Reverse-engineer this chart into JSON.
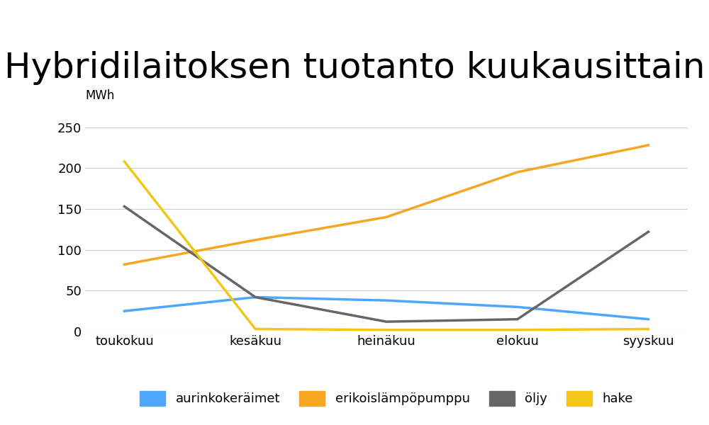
{
  "title": "Hybridilaitoksen tuotanto kuukausittain",
  "ylabel": "MWh",
  "categories": [
    "toukokuu",
    "kesäkuu",
    "heinäkuu",
    "elokuu",
    "syyskuu"
  ],
  "series": {
    "aurinkokeräimet": [
      25,
      42,
      38,
      30,
      15
    ],
    "erikoislämpöpumppu": [
      82,
      112,
      140,
      195,
      228
    ],
    "öljy": [
      153,
      42,
      12,
      15,
      122
    ],
    "hake": [
      208,
      3,
      2,
      2,
      3
    ]
  },
  "colors": {
    "aurinkokeräimet": "#4DA6FF",
    "erikoislämpöpumppu": "#F5A623",
    "öljy": "#666666",
    "hake": "#F5C518"
  },
  "ylim": [
    0,
    260
  ],
  "yticks": [
    0,
    50,
    100,
    150,
    200,
    250
  ],
  "title_fontsize": 36,
  "axis_fontsize": 13,
  "legend_fontsize": 13,
  "line_width": 2.5,
  "background_color": "#ffffff"
}
